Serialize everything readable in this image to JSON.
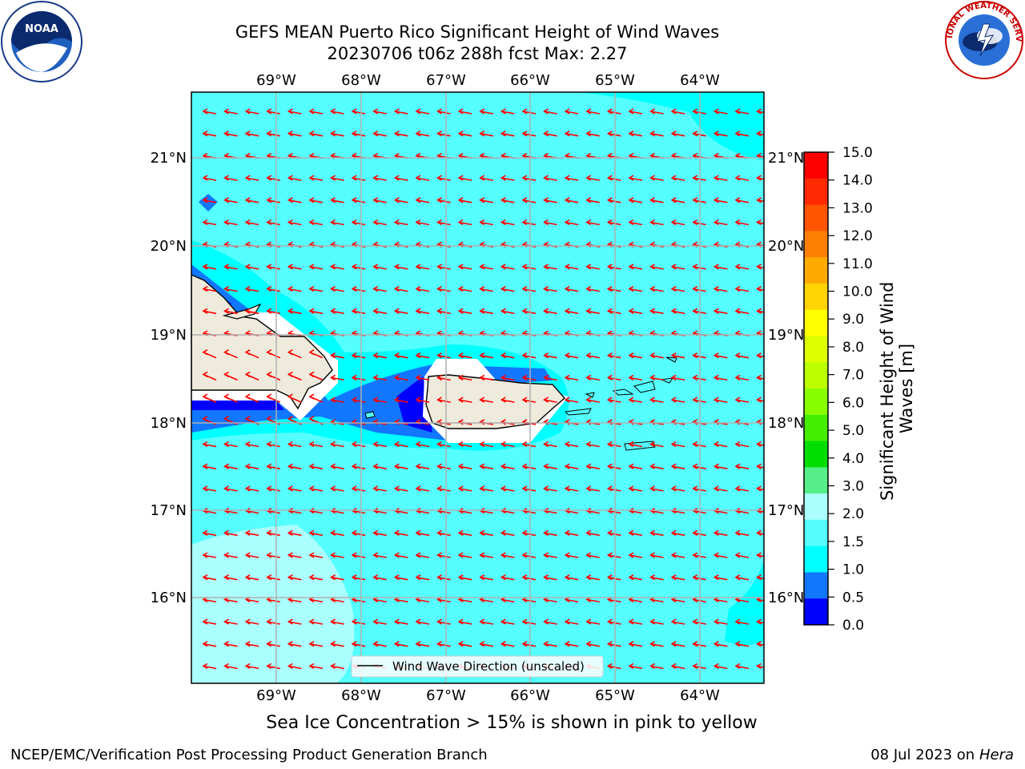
{
  "header": {
    "title_line1": "GEFS MEAN Puerto Rico Significant Height of Wind Waves",
    "title_line2": "20230706 t06z 288h fcst   Max: 2.27"
  },
  "logos": {
    "left": "noaa-logo",
    "left_text": "NOAA",
    "right": "nws-logo",
    "right_text": "NATIONAL WEATHER SERVICE"
  },
  "map": {
    "lon_labels": [
      "69°W",
      "68°W",
      "67°W",
      "66°W",
      "65°W",
      "64°W"
    ],
    "lat_labels": [
      "21°N",
      "20°N",
      "19°N",
      "18°N",
      "17°N",
      "16°N"
    ],
    "legend_label": "Wind Wave Direction (unscaled)",
    "arrow_color": "#ff0000",
    "ocean_color": "#55ffff",
    "land_color": "#eeebdc"
  },
  "colorbar": {
    "label_line1": "Significant Height of Wind",
    "label_line2": "Waves [m]",
    "ticks": [
      "15.0",
      "14.0",
      "13.0",
      "12.0",
      "11.0",
      "10.0",
      "9.0",
      "8.0",
      "7.0",
      "6.0",
      "5.0",
      "4.0",
      "3.0",
      "2.0",
      "1.5",
      "1.0",
      "0.5",
      "0.0"
    ],
    "colors_top_to_bottom": [
      "#ff0000",
      "#ff2a00",
      "#ff5500",
      "#ff8000",
      "#ffaa00",
      "#ffd400",
      "#ffff00",
      "#ddff00",
      "#bbff00",
      "#88ff00",
      "#44ee00",
      "#00dd00",
      "#55ee88",
      "#aaffff",
      "#55ffff",
      "#00ffff",
      "#1177ff",
      "#0000ff"
    ]
  },
  "footer": {
    "ice_note": "Sea Ice Concentration > 15% is shown in pink to yellow",
    "credit": "NCEP/EMC/Verification Post Processing Product Generation Branch",
    "date": "08 Jul 2023 on ",
    "host": "Hera"
  }
}
